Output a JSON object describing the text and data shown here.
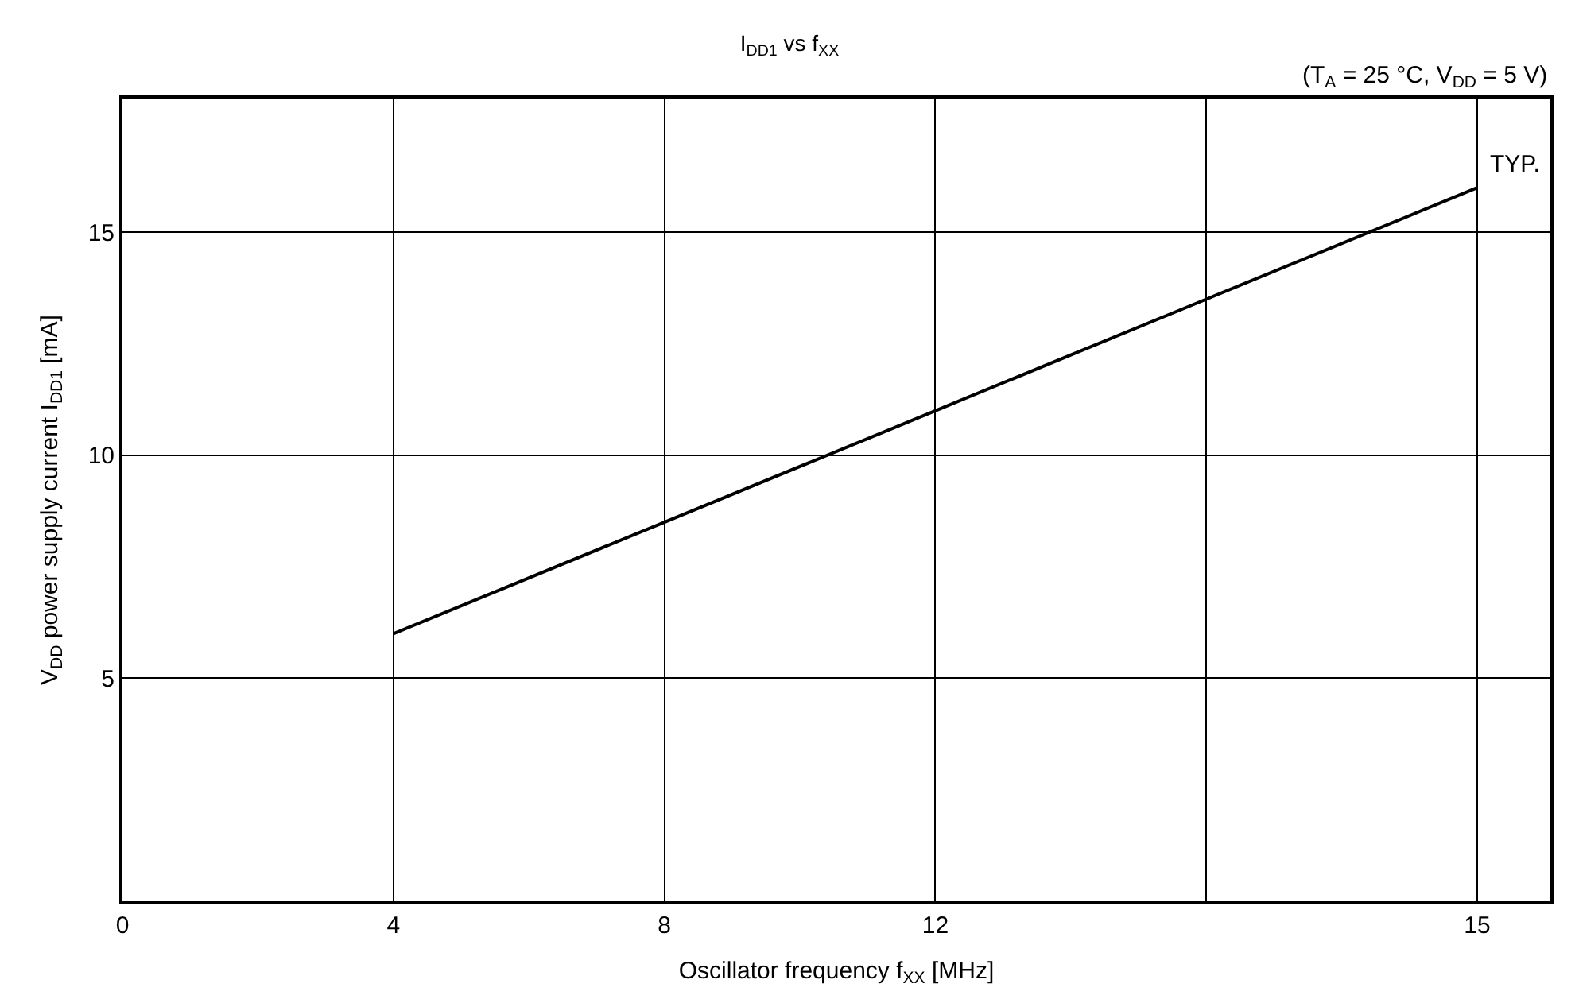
{
  "chart_data": {
    "type": "line",
    "title": "I$_{DD1}$ vs f$_{XX}$",
    "subtitle": "(T$_{A}$ = 25 °C, V$_{DD}$ = 5 V)",
    "xlabel": "Oscillator frequency f$_{XX}$ [MHz]",
    "ylabel": "V$_{DD}$ power supply current I$_{DD1}$ [mA]",
    "categories": [
      "0",
      "4",
      "8",
      "12",
      null,
      "15"
    ],
    "series": [
      {
        "color": "#000000",
        "values": [
          null,
          6,
          8.5,
          11,
          13.5,
          16
        ]
      }
    ],
    "annotations": [
      {
        "text": "TYP.",
        "x": "15",
        "y": 16
      }
    ],
    "ylim": [
      0,
      18
    ],
    "yticks": [
      5,
      10,
      15
    ],
    "grid": true,
    "marker": "none",
    "line_style": "solid"
  }
}
